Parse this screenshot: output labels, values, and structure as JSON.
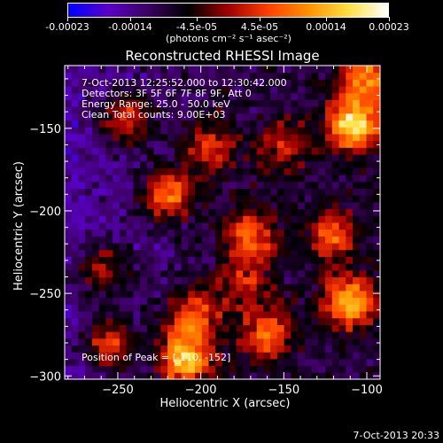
{
  "colorbar": {
    "tick_labels": [
      "-0.00023",
      "-0.00014",
      "-4.5e-05",
      "4.5e-05",
      "0.00014",
      "0.00023"
    ],
    "tick_values": [
      -0.00023,
      -0.00014,
      -4.5e-05,
      4.5e-05,
      0.00014,
      0.00023
    ],
    "unit_label": "(photons cm⁻² s⁻¹ asec⁻²)",
    "range": [
      -0.00023,
      0.00023
    ],
    "colors": [
      "#0000ff",
      "#5a00c8",
      "#3c0060",
      "#000000",
      "#a00000",
      "#ff4000",
      "#ff9000",
      "#ffe040",
      "#ffffff"
    ]
  },
  "chart_data": {
    "type": "heatmap",
    "title": "Reconstructed RHESSI Image",
    "xlabel": "Heliocentric X (arcsec)",
    "ylabel": "Heliocentric Y (arcsec)",
    "xlim": [
      -282,
      -92
    ],
    "ylim": [
      -302,
      -112
    ],
    "x_ticks": [
      -250,
      -200,
      -150,
      -100
    ],
    "y_ticks": [
      -150,
      -200,
      -250,
      -300
    ],
    "x_tick_labels": [
      "−250",
      "−200",
      "−150",
      "−100"
    ],
    "y_tick_labels": [
      "−150",
      "−200",
      "−250",
      "−300"
    ],
    "annotations": [
      "7-Oct-2013 12:25:52.000 to 12:30:42.000",
      "Detectors: 3F 5F 6F 7F 8F 9F, Att 0",
      "Energy Range: 25.0 - 50.0 keV",
      "Clean     Total counts: 9.00E+03"
    ],
    "peak_label": "Position of Peak = [-110, -152]",
    "peak_position": [
      -110,
      -152
    ],
    "grid": false,
    "sources": [
      {
        "x": -108,
        "y": -148,
        "intensity": 1.0
      },
      {
        "x": -100,
        "y": -120,
        "intensity": 0.7
      },
      {
        "x": -245,
        "y": -145,
        "intensity": 0.6
      },
      {
        "x": -220,
        "y": -190,
        "intensity": 0.7
      },
      {
        "x": -170,
        "y": -215,
        "intensity": 0.6
      },
      {
        "x": -195,
        "y": -160,
        "intensity": 0.5
      },
      {
        "x": -150,
        "y": -160,
        "intensity": 0.4
      },
      {
        "x": -120,
        "y": -215,
        "intensity": 0.55
      },
      {
        "x": -260,
        "y": -235,
        "intensity": 0.45
      },
      {
        "x": -205,
        "y": -265,
        "intensity": 0.65
      },
      {
        "x": -210,
        "y": -290,
        "intensity": 0.95
      },
      {
        "x": -160,
        "y": -275,
        "intensity": 0.6
      },
      {
        "x": -110,
        "y": -255,
        "intensity": 0.85
      },
      {
        "x": -255,
        "y": -280,
        "intensity": 0.6
      },
      {
        "x": -175,
        "y": -245,
        "intensity": 0.4
      }
    ]
  },
  "footer": {
    "timestamp": "7-Oct-2013 20:33"
  }
}
